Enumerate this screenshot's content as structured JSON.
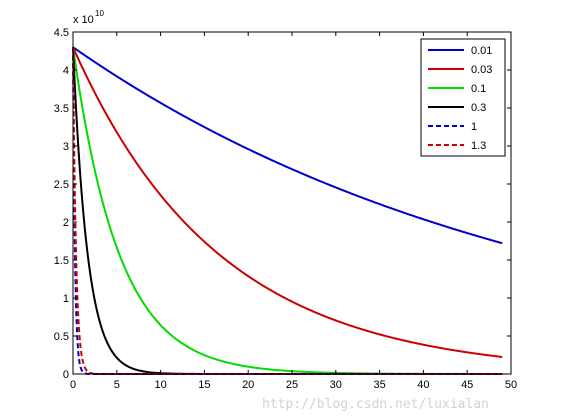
{
  "chart_data": {
    "type": "line",
    "title": "",
    "xlabel": "",
    "ylabel": "",
    "scale_exponent_label": "x 10",
    "scale_exponent_power": "10",
    "xlim": [
      0,
      50
    ],
    "ylim": [
      0,
      4.5
    ],
    "y_unit_multiplier": 10000000000,
    "xticks": [
      0,
      5,
      10,
      15,
      20,
      25,
      30,
      35,
      40,
      45,
      50
    ],
    "xtick_labels": [
      "0",
      "5",
      "10",
      "15",
      "20",
      "25",
      "30",
      "35",
      "40",
      "45",
      "50"
    ],
    "yticks": [
      0,
      0.5,
      1,
      1.5,
      2,
      2.5,
      3,
      3.5,
      4,
      4.5
    ],
    "ytick_labels": [
      "0",
      "0.5",
      "1",
      "1.5",
      "2",
      "2.5",
      "3",
      "3.5",
      "4",
      "4.5"
    ],
    "grid": false,
    "legend_position": "top-right",
    "x_range_of_series": [
      0,
      49
    ],
    "series": [
      {
        "name": "0.01",
        "color": "#0000cc",
        "style": "solid",
        "y0": 4.3,
        "decay_per_iteration": 0.01869
      },
      {
        "name": "0.03",
        "color": "#cc0000",
        "style": "solid",
        "y0": 4.3,
        "decay_per_iteration": 0.0603
      },
      {
        "name": "0.1",
        "color": "#00dd00",
        "style": "solid",
        "y0": 4.3,
        "decay_per_iteration": 0.19
      },
      {
        "name": "0.3",
        "color": "#000000",
        "style": "solid",
        "y0": 4.3,
        "decay_per_iteration": 0.6
      },
      {
        "name": "1",
        "color": "#0000cc",
        "style": "dashed",
        "y0": 4.3,
        "decay_per_iteration": 4.5
      },
      {
        "name": "1.3",
        "color": "#cc0000",
        "style": "dashed",
        "y0": 4.3,
        "decay_per_iteration": 2.9
      }
    ]
  },
  "watermark": "http://blog.csdn.net/luxialan"
}
